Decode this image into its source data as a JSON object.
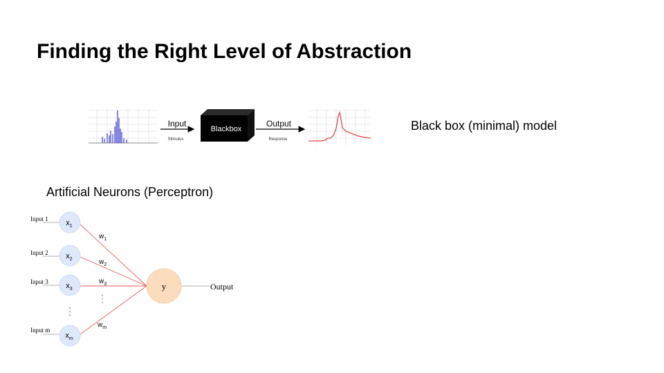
{
  "slide": {
    "title": "Finding the Right Level of Abstraction"
  },
  "blackbox_model": {
    "input_label": "Input",
    "stimulus_label": "Stimulus",
    "box_label": "Blackbox",
    "output_label": "Output",
    "response_label": "Response",
    "caption": "Black box (minimal) model",
    "colors": {
      "stimulus": "#3a3ad0",
      "response": "#e04a4a",
      "box": "#000000"
    }
  },
  "perceptron": {
    "caption": "Artificial Neurons (Perceptron)",
    "inputs": [
      {
        "label": "Input 1",
        "node": "x",
        "sub": "1",
        "weight": "w",
        "weight_sub": "1"
      },
      {
        "label": "Input 2",
        "node": "x",
        "sub": "2",
        "weight": "w",
        "weight_sub": "2"
      },
      {
        "label": "Input 3",
        "node": "x",
        "sub": "3",
        "weight": "w",
        "weight_sub": "3"
      },
      {
        "label": "Input m",
        "node": "x",
        "sub": "m",
        "weight": "w",
        "weight_sub": "m"
      }
    ],
    "output_node": "y",
    "output_label": "Output",
    "colors": {
      "input_node": "#dde8fa",
      "output_node": "#fbdcbd",
      "edge": "#e85a5a"
    }
  }
}
